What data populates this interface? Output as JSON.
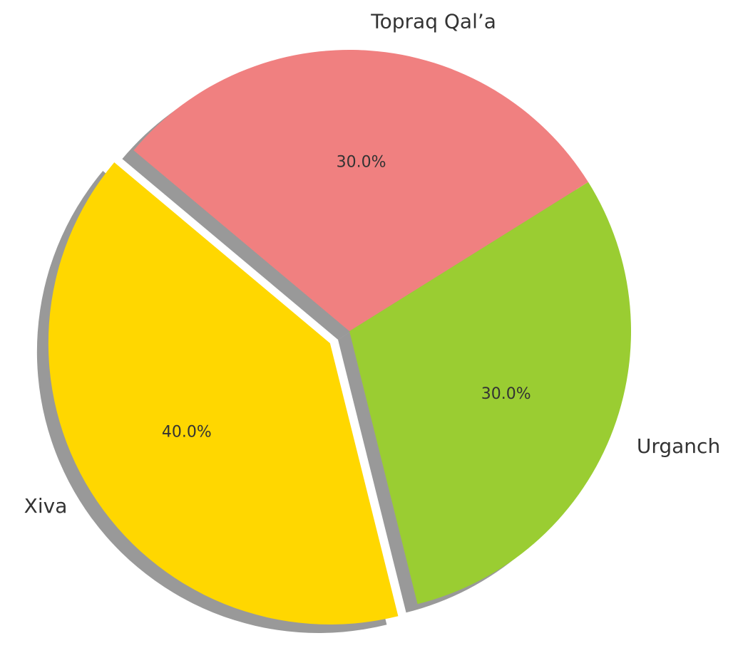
{
  "chart_data": {
    "type": "pie",
    "categories": [
      "Xiva",
      "Urganch",
      "Topraq Qal’a"
    ],
    "values": [
      40,
      30,
      30
    ],
    "value_labels": [
      "40.0%",
      "30.0%",
      "30.0%"
    ],
    "colors": [
      "#ffd700",
      "#9acd32",
      "#f08080"
    ],
    "explode": [
      true,
      false,
      false
    ],
    "shadow": true
  }
}
